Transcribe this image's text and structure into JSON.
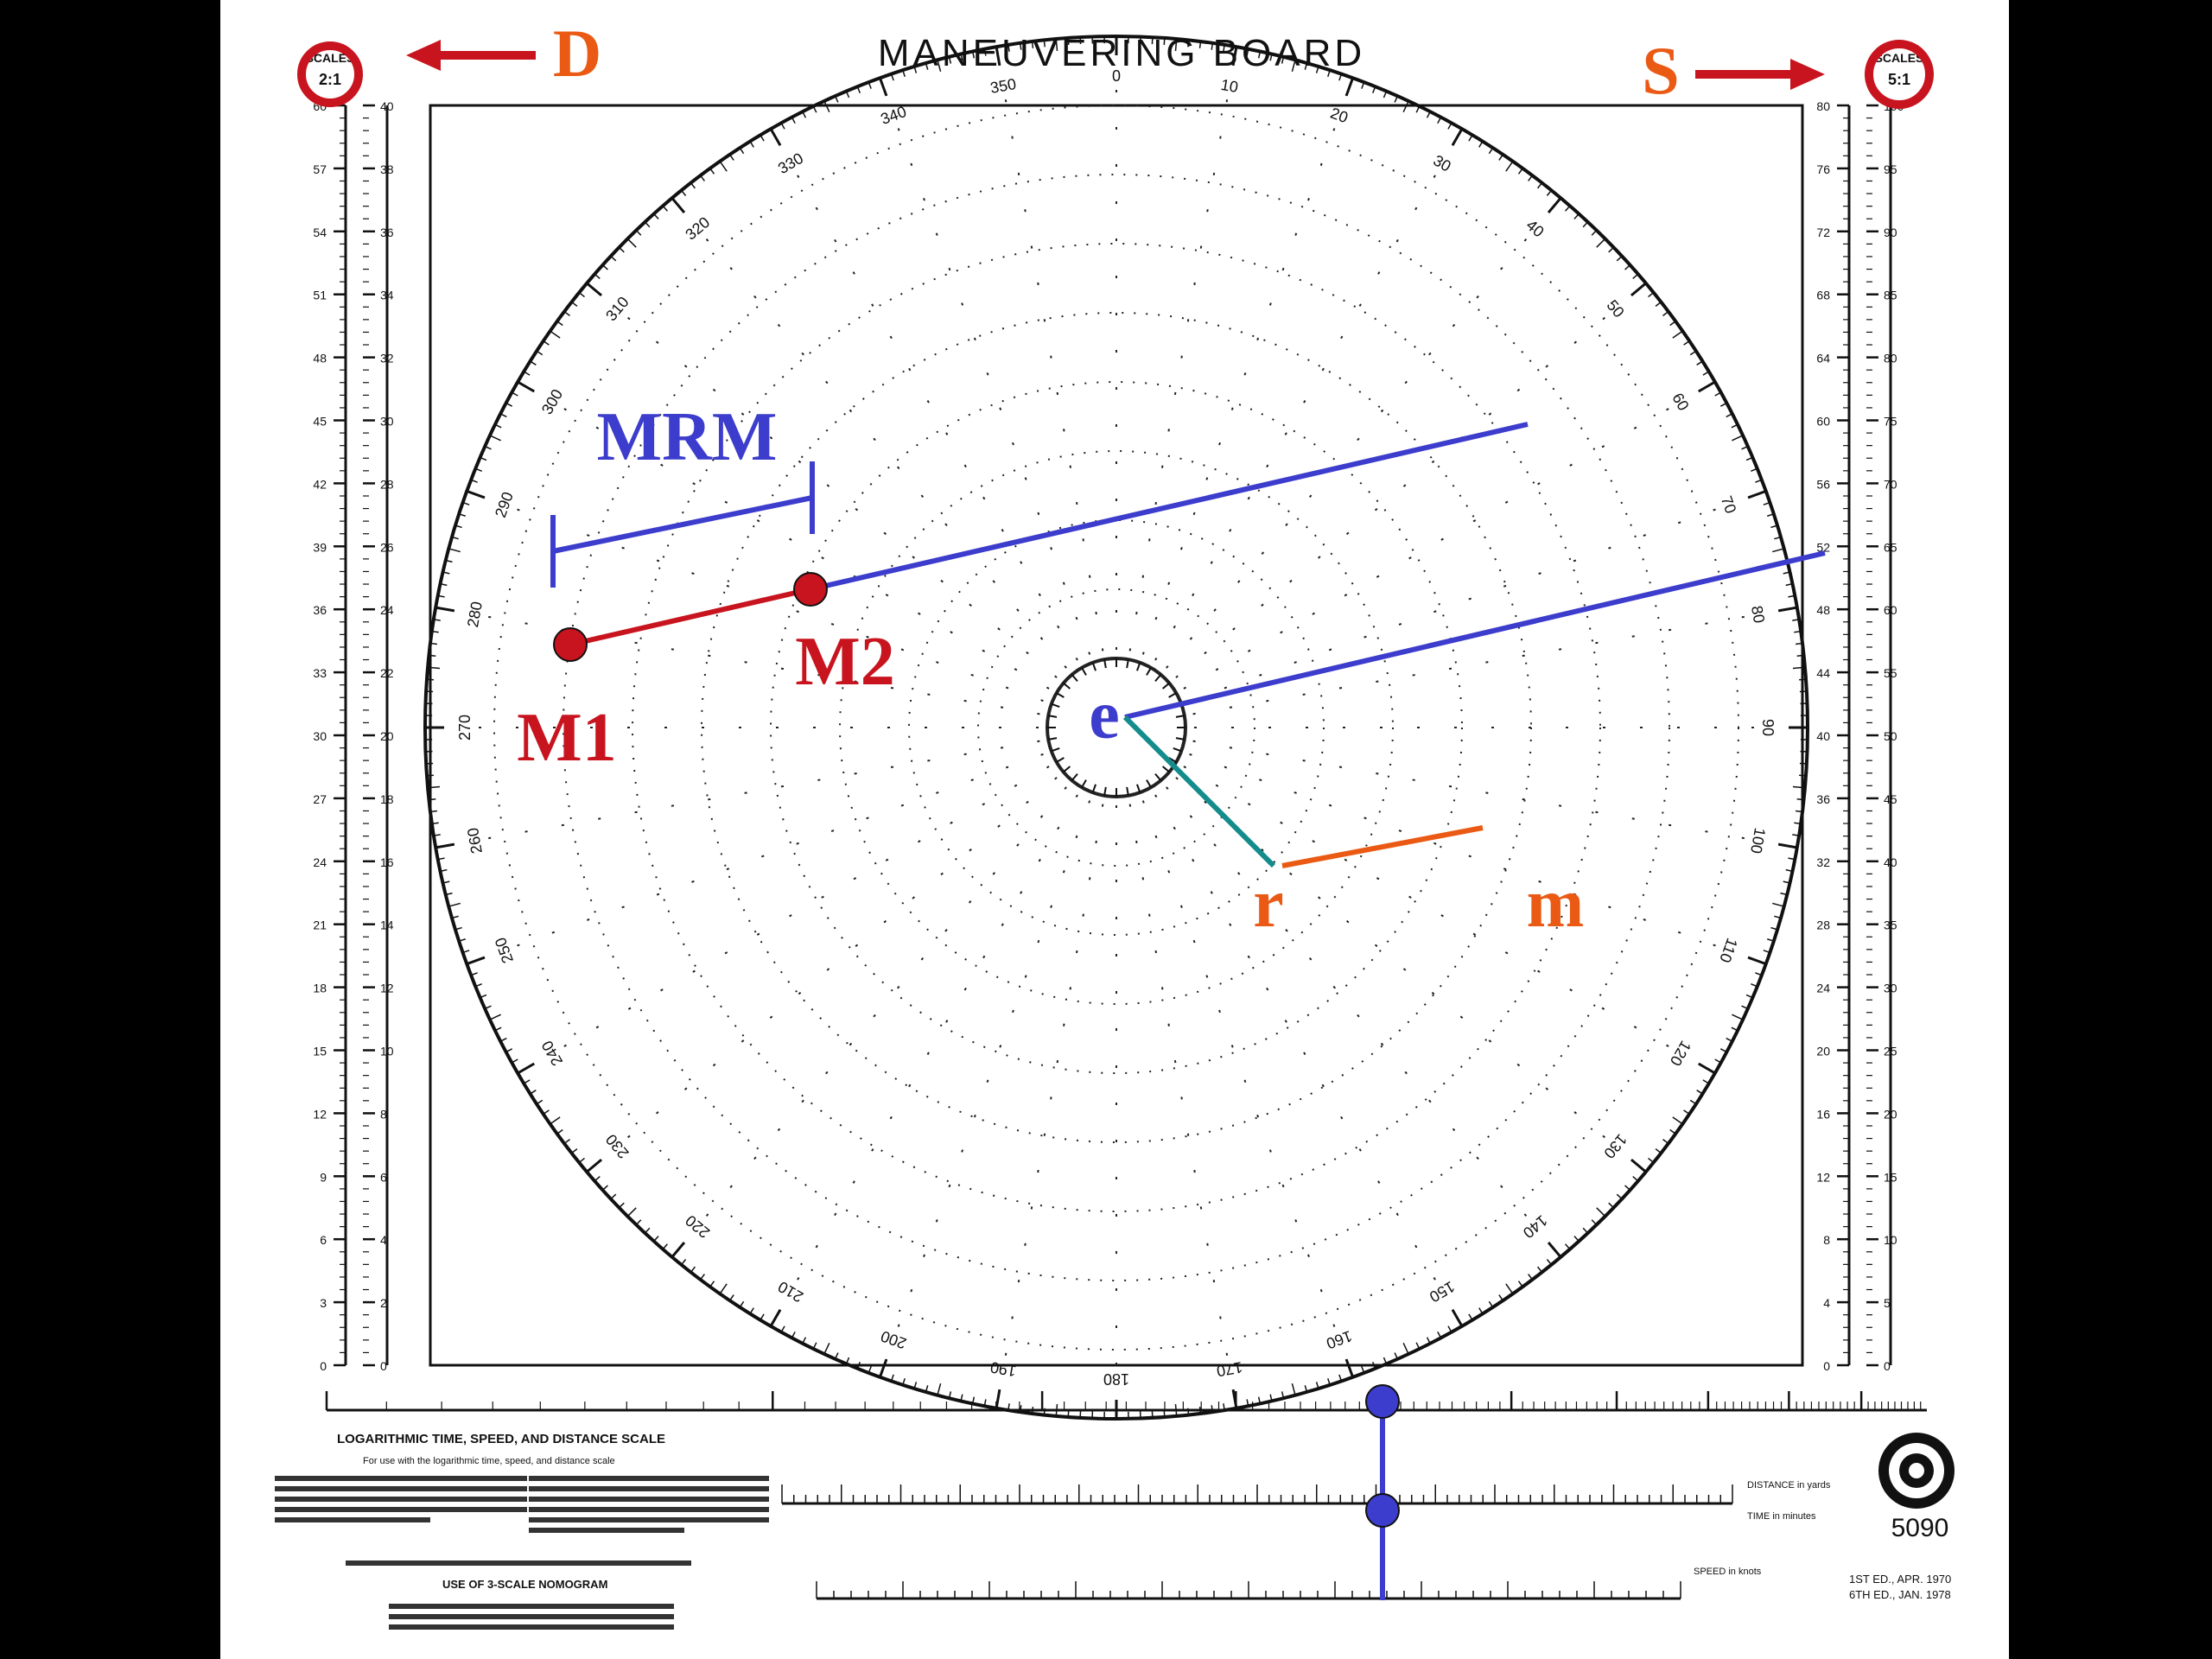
{
  "header": {
    "title": "MANEUVERING BOARD",
    "left_scale_label": "SCALES",
    "right_scale_label": "SCALES",
    "left_scale_value": "2:1",
    "right_scale_value": "5:1"
  },
  "annotations": {
    "distance_label": "D",
    "speed_label": "S",
    "mrm_label": "MRM",
    "m1_label": "M1",
    "m2_label": "M2",
    "e_label": "e",
    "r_label": "r",
    "m_label": "m"
  },
  "compass": {
    "bearing_labels": [
      "0",
      "10",
      "20",
      "30",
      "40",
      "50",
      "60",
      "70",
      "80",
      "90",
      "100",
      "110",
      "120",
      "130",
      "140",
      "150",
      "160",
      "170",
      "180",
      "190",
      "200",
      "210",
      "220",
      "230",
      "240",
      "250",
      "260",
      "270",
      "280",
      "290",
      "300",
      "310",
      "320",
      "330",
      "340",
      "350"
    ]
  },
  "left_scale": {
    "ticks": [
      "60",
      "57",
      "54",
      "51",
      "48",
      "45",
      "42",
      "39",
      "36",
      "33",
      "30",
      "27",
      "24",
      "21",
      "18",
      "15",
      "12",
      "9",
      "6",
      "3",
      "0"
    ],
    "inner_ticks": [
      "40",
      "38",
      "36",
      "34",
      "32",
      "30",
      "28",
      "26",
      "24",
      "22",
      "20",
      "18",
      "16",
      "14",
      "12",
      "10",
      "8",
      "6",
      "4",
      "2",
      "0"
    ]
  },
  "right_scale": {
    "ticks": [
      "80",
      "76",
      "72",
      "68",
      "64",
      "60",
      "56",
      "52",
      "48",
      "44",
      "40",
      "36",
      "32",
      "28",
      "24",
      "20",
      "16",
      "12",
      "8",
      "4",
      "0"
    ],
    "inner_ticks": [
      "100",
      "95",
      "90",
      "85",
      "80",
      "75",
      "70",
      "65",
      "60",
      "55",
      "50",
      "45",
      "40",
      "35",
      "30",
      "25",
      "20",
      "15",
      "10",
      "5",
      "0"
    ]
  },
  "footer": {
    "log_scale_title": "LOGARITHMIC TIME, SPEED, AND DISTANCE SCALE",
    "log_scale_subtitle": "For use with the logarithmic time, speed, and distance scale",
    "three_scale_title": "USE OF 3-SCALE NOMOGRAM",
    "form_number": "5090",
    "edition_1": "1ST ED., APR. 1970",
    "edition_2": "6TH ED., JAN. 1978",
    "distance_legend": "DISTANCE in yards",
    "speed_legend": "SPEED in knots",
    "time_legend": "TIME in minutes"
  },
  "colors": {
    "red": "#c8141e",
    "orange": "#ea5a14",
    "blue": "#3c3ccd",
    "teal": "#148c8c",
    "ink": "#111111",
    "paper": "#ffffff"
  }
}
